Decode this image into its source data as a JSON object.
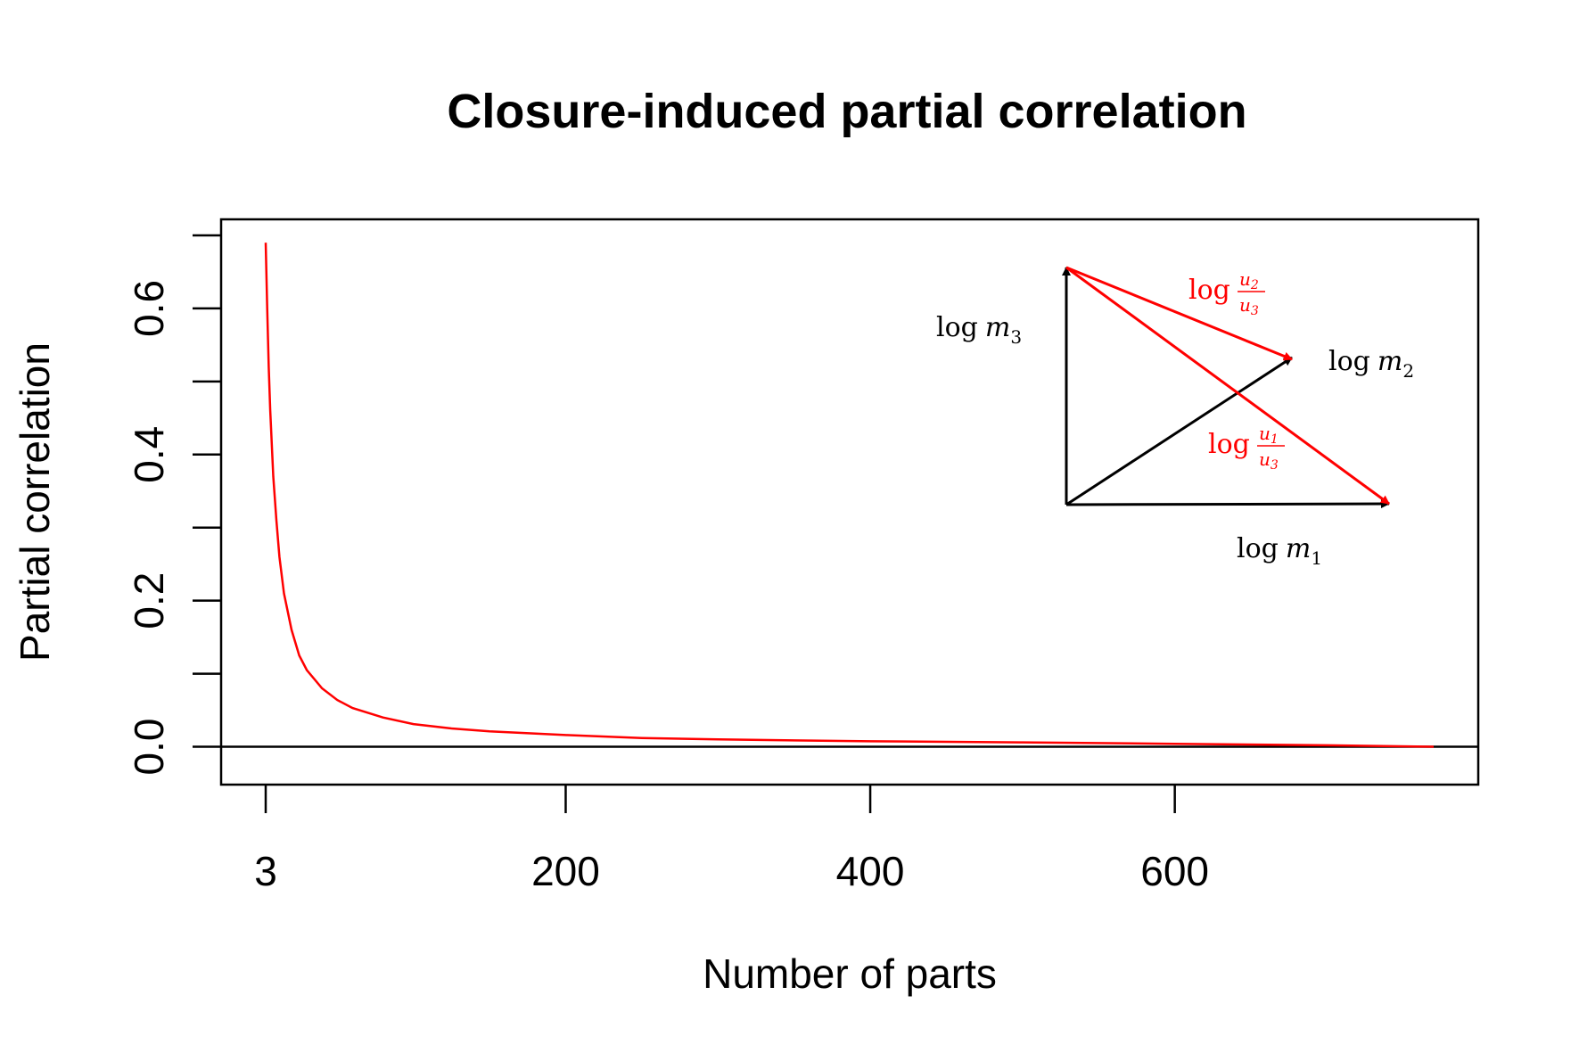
{
  "chart_data": {
    "type": "line",
    "title": "Closure-induced partial correlation",
    "xlabel": "Number of parts",
    "ylabel": "Partial correlation",
    "xlim": [
      3,
      770
    ],
    "ylim": [
      -0.025,
      0.7
    ],
    "x_ticks": [
      {
        "value": 3,
        "label": "3"
      },
      {
        "value": 200,
        "label": "200"
      },
      {
        "value": 400,
        "label": "400"
      },
      {
        "value": 600,
        "label": "600"
      }
    ],
    "y_ticks": [
      {
        "value": 0.0,
        "label": "0.0"
      },
      {
        "value": 0.1,
        "label": ""
      },
      {
        "value": 0.2,
        "label": "0.2"
      },
      {
        "value": 0.3,
        "label": ""
      },
      {
        "value": 0.4,
        "label": "0.4"
      },
      {
        "value": 0.5,
        "label": ""
      },
      {
        "value": 0.6,
        "label": "0.6"
      },
      {
        "value": 0.7,
        "label": ""
      }
    ],
    "reference_line_y": 0,
    "series": [
      {
        "color": "#ff0000",
        "x": [
          3,
          4,
          5,
          6,
          8,
          10,
          12,
          15,
          20,
          25,
          30,
          40,
          50,
          60,
          80,
          100,
          125,
          150,
          200,
          250,
          300,
          400,
          500,
          600,
          700,
          770
        ],
        "y": [
          0.69,
          0.6,
          0.52,
          0.46,
          0.37,
          0.31,
          0.26,
          0.21,
          0.16,
          0.125,
          0.105,
          0.08,
          0.064,
          0.053,
          0.04,
          0.031,
          0.025,
          0.021,
          0.016,
          0.012,
          0.01,
          0.0075,
          0.006,
          0.004,
          0.002,
          0.0
        ]
      }
    ],
    "grid": false,
    "inset_diagram": {
      "labels": {
        "m3": {
          "log": "log",
          "var": "m",
          "sub": "3"
        },
        "m2": {
          "log": "log",
          "var": "m",
          "sub": "2"
        },
        "m1": {
          "log": "log",
          "var": "m",
          "sub": "1"
        },
        "u2u3": {
          "log": "log",
          "num": "u",
          "num_sub": "2",
          "den": "u",
          "den_sub": "3"
        },
        "u1u3": {
          "log": "log",
          "num": "u",
          "num_sub": "1",
          "den": "u",
          "den_sub": "3"
        }
      },
      "colors": {
        "axes": "#000000",
        "ratios": "#ff0000"
      }
    }
  }
}
